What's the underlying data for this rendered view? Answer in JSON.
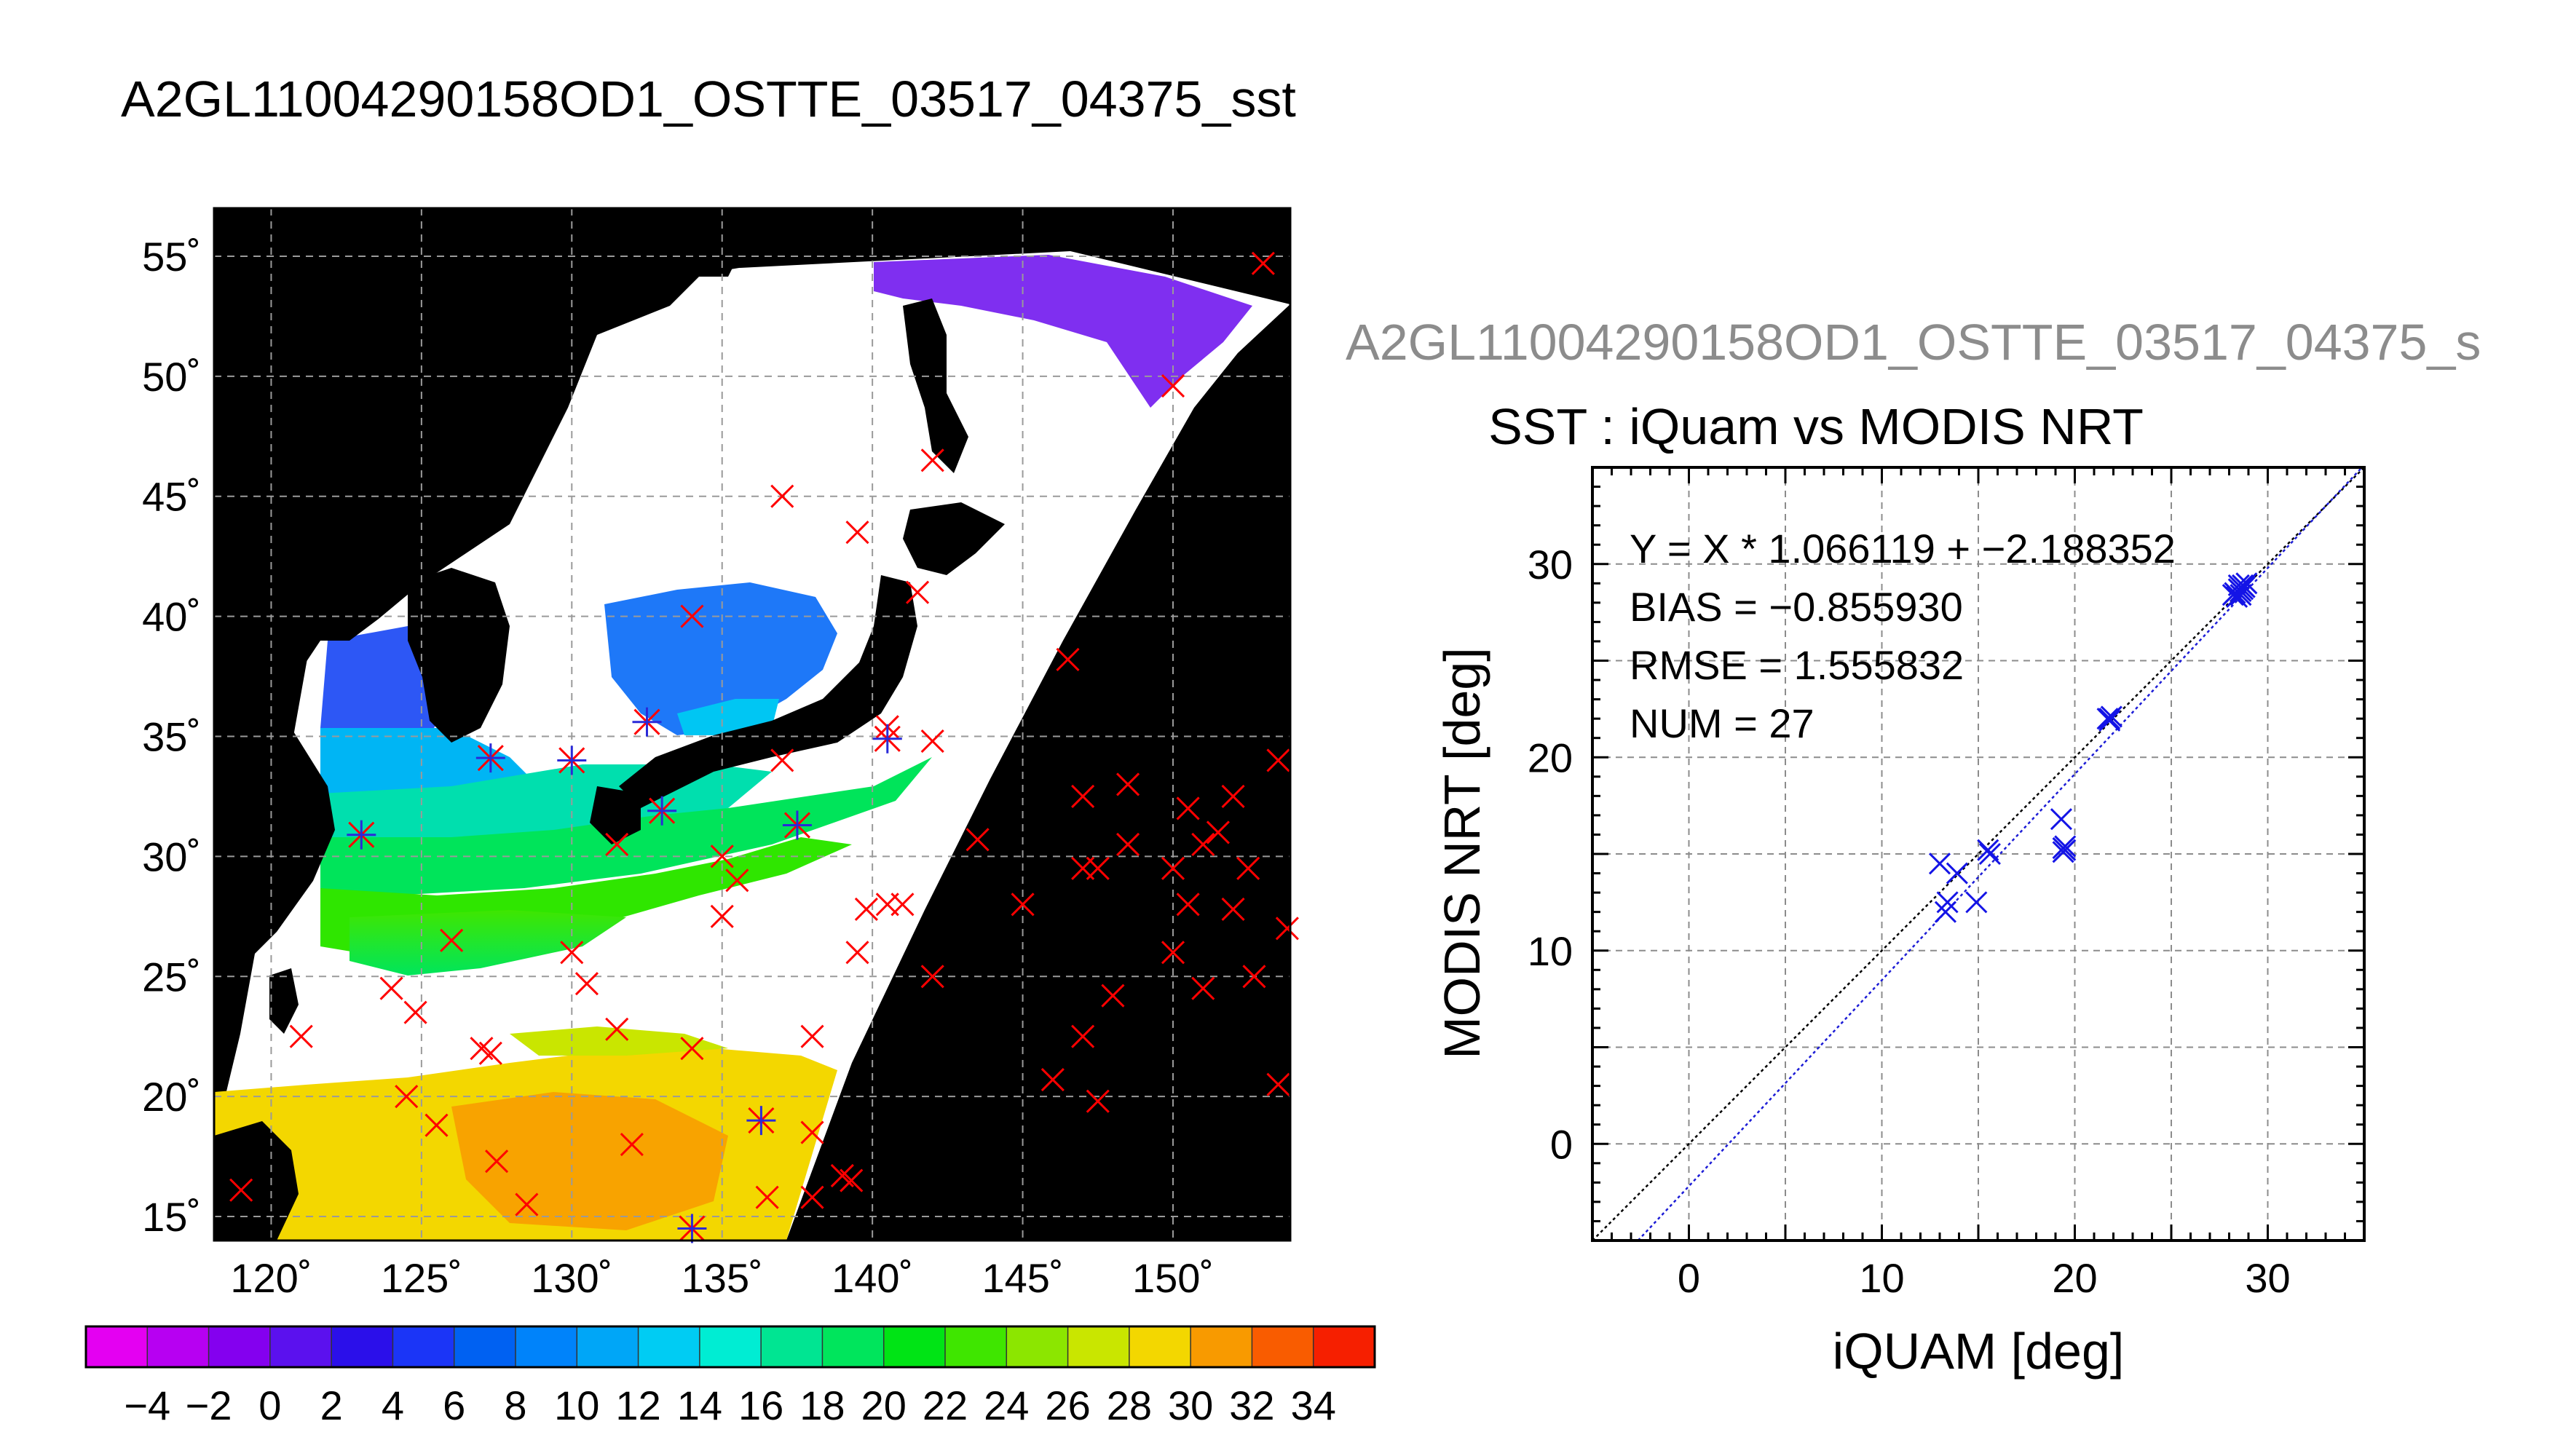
{
  "main_title": "A2GL11004290158OD1_OSTTE_03517_04375_sst",
  "scatter_title_grey": "A2GL11004290158OD1_OSTTE_03517_04375_s",
  "chart_data": [
    {
      "type": "heatmap",
      "map": {
        "lon_ticks": [
          120,
          125,
          130,
          135,
          140,
          145,
          150
        ],
        "lon_tick_labels": [
          "120˚",
          "125˚",
          "130˚",
          "135˚",
          "140˚",
          "145˚",
          "150˚"
        ],
        "lat_ticks": [
          15,
          20,
          25,
          30,
          35,
          40,
          45,
          50,
          55
        ],
        "lat_tick_labels": [
          "15˚",
          "20˚",
          "25˚",
          "30˚",
          "35˚",
          "40˚",
          "45˚",
          "50˚",
          "55˚"
        ],
        "xlim": [
          118.1,
          153.9
        ],
        "ylim": [
          14,
          57
        ],
        "grid": true,
        "background_color": "#000000",
        "cloud_color": "#ffffff",
        "matchups_red_x": [
          [
            153,
            54.7
          ],
          [
            150,
            49.6
          ],
          [
            142,
            46.5
          ],
          [
            137,
            45
          ],
          [
            139.5,
            43.5
          ],
          [
            141.5,
            41
          ],
          [
            134,
            40
          ],
          [
            146.5,
            38.2
          ],
          [
            142,
            34.8
          ],
          [
            137,
            34
          ],
          [
            140.5,
            35.4
          ],
          [
            147,
            32.5
          ],
          [
            148.5,
            33
          ],
          [
            150.5,
            32
          ],
          [
            152,
            32.5
          ],
          [
            153.5,
            34
          ],
          [
            143.5,
            30.7
          ],
          [
            148.5,
            30.5
          ],
          [
            151,
            30.5
          ],
          [
            151.5,
            31
          ],
          [
            152.5,
            29.5
          ],
          [
            147,
            29.5
          ],
          [
            147.5,
            29.5
          ],
          [
            150,
            29.5
          ],
          [
            135,
            30
          ],
          [
            135.5,
            29
          ],
          [
            131.5,
            30.5
          ],
          [
            145,
            28
          ],
          [
            140.5,
            28
          ],
          [
            141,
            28
          ],
          [
            139.8,
            27.8
          ],
          [
            150.5,
            28
          ],
          [
            152,
            27.8
          ],
          [
            153.8,
            27
          ],
          [
            135,
            27.5
          ],
          [
            139.5,
            26
          ],
          [
            130,
            26
          ],
          [
            126,
            26.5
          ],
          [
            142,
            25
          ],
          [
            130.5,
            24.7
          ],
          [
            124,
            24.5
          ],
          [
            124.8,
            23.5
          ],
          [
            148,
            24.2
          ],
          [
            150,
            26
          ],
          [
            151,
            24.5
          ],
          [
            152.7,
            25
          ],
          [
            147,
            22.5
          ],
          [
            138,
            22.5
          ],
          [
            131.5,
            22.8
          ],
          [
            134,
            22
          ],
          [
            127,
            22
          ],
          [
            127.3,
            21.8
          ],
          [
            121,
            22.5
          ],
          [
            124.5,
            20
          ],
          [
            146,
            20.7
          ],
          [
            147.5,
            19.8
          ],
          [
            153.5,
            20.5
          ],
          [
            125.5,
            18.8
          ],
          [
            132,
            18
          ],
          [
            138,
            18.5
          ],
          [
            127.5,
            17.3
          ],
          [
            139,
            16.7
          ],
          [
            139.3,
            16.5
          ],
          [
            128.5,
            15.5
          ],
          [
            138,
            15.8
          ],
          [
            136.5,
            15.8
          ],
          [
            119,
            16.1
          ]
        ],
        "matchups_used_star": [
          [
            123,
            30.9
          ],
          [
            127.3,
            34.1
          ],
          [
            130,
            34
          ],
          [
            132.5,
            35.6
          ],
          [
            133,
            31.9
          ],
          [
            137.5,
            31.3
          ],
          [
            140.5,
            34.9
          ],
          [
            136.3,
            19
          ],
          [
            134,
            14.5
          ]
        ]
      },
      "colorbar": {
        "tick_labels": [
          "−4",
          "−2",
          "0",
          "2",
          "4",
          "6",
          "8",
          "10",
          "12",
          "14",
          "16",
          "18",
          "20",
          "22",
          "24",
          "26",
          "28",
          "30",
          "32",
          "34"
        ],
        "colors": [
          "#e400f2",
          "#b700f2",
          "#8400ef",
          "#5b11ee",
          "#2b0fea",
          "#1b35f7",
          "#0061f2",
          "#0083fa",
          "#00a6f7",
          "#00ccf3",
          "#00edd3",
          "#00e592",
          "#00e55c",
          "#00e415",
          "#3fe600",
          "#8ce600",
          "#c9e600",
          "#f3d700",
          "#f89a00",
          "#f95c00",
          "#f61f00"
        ]
      }
    },
    {
      "type": "scatter",
      "title": "SST : iQuam vs MODIS NRT",
      "xlabel": "iQUAM [deg]",
      "ylabel": "MODIS NRT [deg]",
      "xlim": [
        -5,
        35
      ],
      "ylim": [
        -5,
        35
      ],
      "x_ticks": [
        0,
        10,
        20,
        30
      ],
      "y_ticks": [
        0,
        10,
        20,
        30
      ],
      "grid": true,
      "annotations": [
        "Y = X * 1.066119 + −2.188352",
        "BIAS = −0.855930",
        "RMSE = 1.555832",
        "NUM = 27"
      ],
      "fit": {
        "slope": 1.066119,
        "intercept": -2.188352
      },
      "points": [
        [
          13.0,
          14.5
        ],
        [
          13.3,
          12.0
        ],
        [
          13.4,
          12.5
        ],
        [
          13.9,
          14.0
        ],
        [
          14.9,
          12.5
        ],
        [
          15.5,
          15.2
        ],
        [
          15.6,
          15.0
        ],
        [
          19.3,
          16.8
        ],
        [
          19.4,
          15.3
        ],
        [
          19.4,
          15.1
        ],
        [
          19.5,
          15.4
        ],
        [
          19.5,
          15.2
        ],
        [
          21.7,
          22.0
        ],
        [
          21.8,
          21.9
        ],
        [
          21.9,
          22.1
        ],
        [
          21.8,
          22.0
        ],
        [
          28.3,
          28.5
        ],
        [
          28.4,
          28.3
        ],
        [
          28.5,
          28.7
        ],
        [
          28.6,
          28.6
        ],
        [
          28.7,
          28.9
        ],
        [
          28.8,
          28.8
        ],
        [
          28.5,
          28.9
        ],
        [
          28.9,
          29.0
        ],
        [
          28.2,
          28.4
        ],
        [
          28.6,
          28.4
        ],
        [
          28.7,
          28.7
        ]
      ]
    }
  ]
}
